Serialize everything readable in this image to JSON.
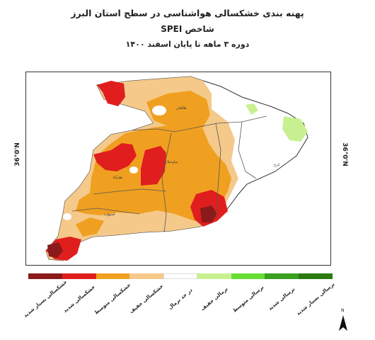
{
  "header": {
    "line1": "پهنه بندی خشکسالی هواشناسی در سطح استان البرز",
    "line2": "شاخص SPEI",
    "line3": "دوره ۳ ماهه تا پایان اسفند ۱۴۰۰"
  },
  "map": {
    "lat_label_left": "36°0'N",
    "lat_label_right": "36°0'N",
    "north_letter": "N",
    "city_labels": [
      "طالقان",
      "ساوجبلاغ",
      "نظرآباد",
      "کرج",
      "اشتهارد"
    ]
  },
  "legend": {
    "items": [
      {
        "label": "خشکسالی بسیار شدید",
        "color": "#8b1a1a"
      },
      {
        "label": "خشکسالی شدید",
        "color": "#e01e1e"
      },
      {
        "label": "خشکسالی متوسط",
        "color": "#f0a020"
      },
      {
        "label": "خشکسالی خفیف",
        "color": "#f5c98a"
      },
      {
        "label": "در حد نرمال",
        "color": "#ffffff"
      },
      {
        "label": "نرمالی خفیف",
        "color": "#c8f090"
      },
      {
        "label": "نرسالی متوسط",
        "color": "#66dd33"
      },
      {
        "label": "نرسالی شدید",
        "color": "#3aa020"
      },
      {
        "label": "نرسالی بسیار شدید",
        "color": "#2a7a12"
      }
    ]
  },
  "colors": {
    "severe_extreme": "#8b1a1a",
    "severe": "#e01e1e",
    "moderate": "#f0a020",
    "mild": "#f5c98a",
    "normal": "#ffffff",
    "wet_mild": "#c8f090",
    "boundary": "#555555"
  }
}
